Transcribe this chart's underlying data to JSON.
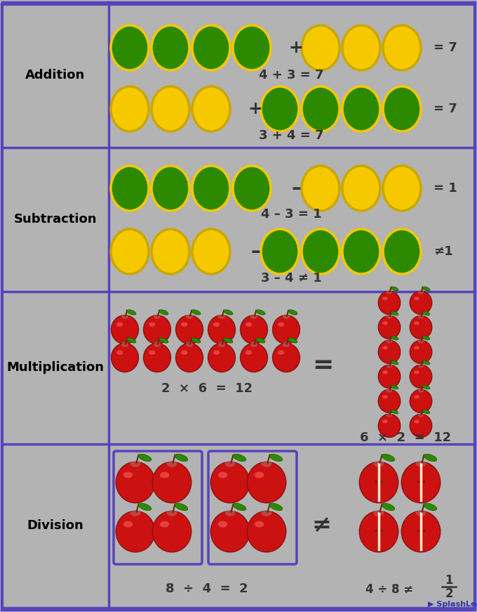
{
  "bg_color": "#b3b3b3",
  "border_color": "#5544bb",
  "green_color": "#2d8a00",
  "yellow_color": "#f5c800",
  "red_color": "#cc1111",
  "label_fontsize": 13,
  "eq_fontsize": 13,
  "sections": [
    "Addition",
    "Subtraction",
    "Multiplication",
    "Division"
  ],
  "addition_eq1": "4 + 3 = 7",
  "addition_eq2": "3 + 4 = 7",
  "subtraction_eq1": "4 – 3 = 1",
  "subtraction_eq2": "3 – 4 ≠ 1",
  "multiplication_eq1": "2  ×  6  =  12",
  "multiplication_eq2": "6  ×  2  =  12",
  "division_eq1": "8  ÷  4  =  2",
  "division_eq2": "4 ÷ 8 ≠"
}
